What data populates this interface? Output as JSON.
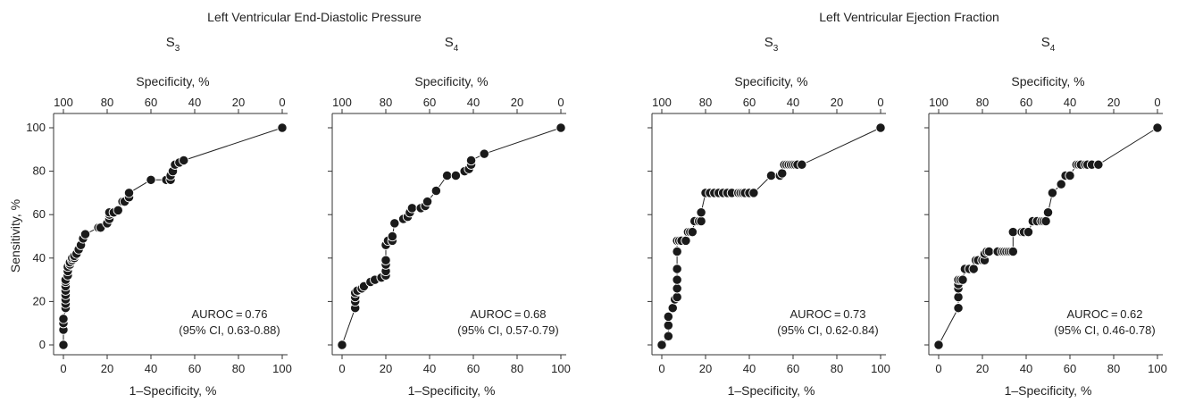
{
  "groups": [
    {
      "title": "Left Ventricular End-Diastolic Pressure"
    },
    {
      "title": "Left Ventricular Ejection Fraction"
    }
  ],
  "axes": {
    "x_bottom_label": "1–Specificity, %",
    "x_top_label": "Specificity, %",
    "y_label": "Sensitivity, %",
    "bottom_ticks": [
      "0",
      "20",
      "40",
      "60",
      "80",
      "100"
    ],
    "top_ticks": [
      "100",
      "80",
      "60",
      "40",
      "20",
      "0"
    ],
    "y_ticks": [
      "0",
      "20",
      "40",
      "60",
      "80",
      "100"
    ]
  },
  "chart_data": [
    {
      "type": "line",
      "group": "Left Ventricular End-Diastolic Pressure",
      "title_main": "S",
      "title_sub": "3",
      "xlim": [
        0,
        100
      ],
      "ylim": [
        0,
        100
      ],
      "xlabel": "1–Specificity, %",
      "ylabel": "Sensitivity, %",
      "annotation": [
        "AUROC = 0.76",
        "(95% CI, 0.63-0.88)"
      ],
      "series": [
        {
          "x": [
            0,
            0,
            0,
            0,
            1,
            1,
            1,
            1,
            1,
            1,
            1,
            1,
            2,
            2,
            2,
            3,
            3,
            4,
            4,
            5,
            5,
            6,
            7,
            8,
            9,
            10,
            16,
            17,
            20,
            21,
            21,
            21,
            23,
            25,
            27,
            28,
            30,
            30,
            40,
            47,
            49,
            49,
            50,
            51,
            53,
            55,
            100
          ],
          "y": [
            0,
            7,
            10,
            12,
            17,
            19,
            21,
            23,
            25,
            27,
            29,
            30,
            32,
            34,
            36,
            37,
            38,
            39,
            40,
            40,
            41,
            42,
            44,
            46,
            49,
            51,
            54,
            54,
            56,
            58,
            60,
            61,
            61,
            62,
            66,
            66,
            68,
            70,
            76,
            76,
            76,
            78,
            80,
            83,
            84,
            85,
            100
          ]
        }
      ]
    },
    {
      "type": "line",
      "group": "Left Ventricular End-Diastolic Pressure",
      "title_main": "S",
      "title_sub": "4",
      "xlim": [
        0,
        100
      ],
      "ylim": [
        0,
        100
      ],
      "xlabel": "1–Specificity, %",
      "ylabel": "",
      "annotation": [
        "AUROC = 0.68",
        "(95% CI, 0.57-0.79)"
      ],
      "series": [
        {
          "x": [
            0,
            6,
            6,
            6,
            6,
            7,
            9,
            10,
            13,
            15,
            18,
            20,
            20,
            20,
            20,
            20,
            21,
            23,
            23,
            24,
            28,
            30,
            31,
            32,
            36,
            38,
            39,
            43,
            48,
            52,
            56,
            58,
            59,
            59,
            65,
            100
          ],
          "y": [
            0,
            17,
            20,
            22,
            24,
            25,
            26,
            27,
            29,
            30,
            31,
            32,
            34,
            37,
            39,
            46,
            48,
            48,
            50,
            56,
            58,
            59,
            61,
            63,
            63,
            64,
            66,
            71,
            78,
            78,
            80,
            81,
            83,
            85,
            88,
            100
          ]
        }
      ]
    },
    {
      "type": "line",
      "group": "Left Ventricular Ejection Fraction",
      "title_main": "S",
      "title_sub": "3",
      "xlim": [
        0,
        100
      ],
      "ylim": [
        0,
        100
      ],
      "xlabel": "1–Specificity, %",
      "ylabel": "",
      "annotation": [
        "AUROC = 0.73",
        "(95% CI, 0.62-0.84)"
      ],
      "series": [
        {
          "x": [
            0,
            3,
            3,
            3,
            5,
            6,
            7,
            7,
            7,
            7,
            7,
            7,
            8,
            9,
            11,
            12,
            13,
            14,
            15,
            17,
            18,
            18,
            20,
            22,
            24,
            26,
            28,
            30,
            32,
            35,
            36,
            37,
            38,
            40,
            42,
            50,
            54,
            55,
            56,
            57,
            58,
            59,
            60,
            61,
            62,
            64,
            100
          ],
          "y": [
            0,
            4,
            9,
            13,
            17,
            21,
            22,
            26,
            30,
            35,
            43,
            48,
            48,
            48,
            48,
            52,
            52,
            52,
            57,
            57,
            57,
            61,
            70,
            70,
            70,
            70,
            70,
            70,
            70,
            70,
            70,
            70,
            70,
            70,
            70,
            78,
            78,
            79,
            83,
            83,
            83,
            83,
            83,
            83,
            83,
            83,
            100
          ]
        }
      ]
    },
    {
      "type": "line",
      "group": "Left Ventricular Ejection Fraction",
      "title_main": "S",
      "title_sub": "4",
      "xlim": [
        0,
        100
      ],
      "ylim": [
        0,
        100
      ],
      "xlabel": "1–Specificity, %",
      "ylabel": "",
      "annotation": [
        "AUROC = 0.62",
        "(95% CI, 0.46-0.78)"
      ],
      "series": [
        {
          "x": [
            0,
            9,
            9,
            9,
            9,
            9,
            10,
            11,
            12,
            14,
            16,
            17,
            18,
            20,
            21,
            21,
            22,
            23,
            27,
            29,
            30,
            31,
            32,
            33,
            34,
            34,
            38,
            39,
            41,
            43,
            45,
            47,
            48,
            49,
            50,
            52,
            56,
            58,
            60,
            63,
            64,
            65,
            67,
            68,
            70,
            73,
            100
          ],
          "y": [
            0,
            17,
            22,
            26,
            28,
            30,
            30,
            30,
            35,
            35,
            35,
            39,
            39,
            39,
            39,
            42,
            43,
            43,
            43,
            43,
            43,
            43,
            43,
            43,
            43,
            52,
            52,
            52,
            52,
            57,
            57,
            57,
            57,
            57,
            61,
            70,
            74,
            78,
            78,
            83,
            83,
            83,
            83,
            83,
            83,
            83,
            100
          ]
        }
      ]
    }
  ]
}
